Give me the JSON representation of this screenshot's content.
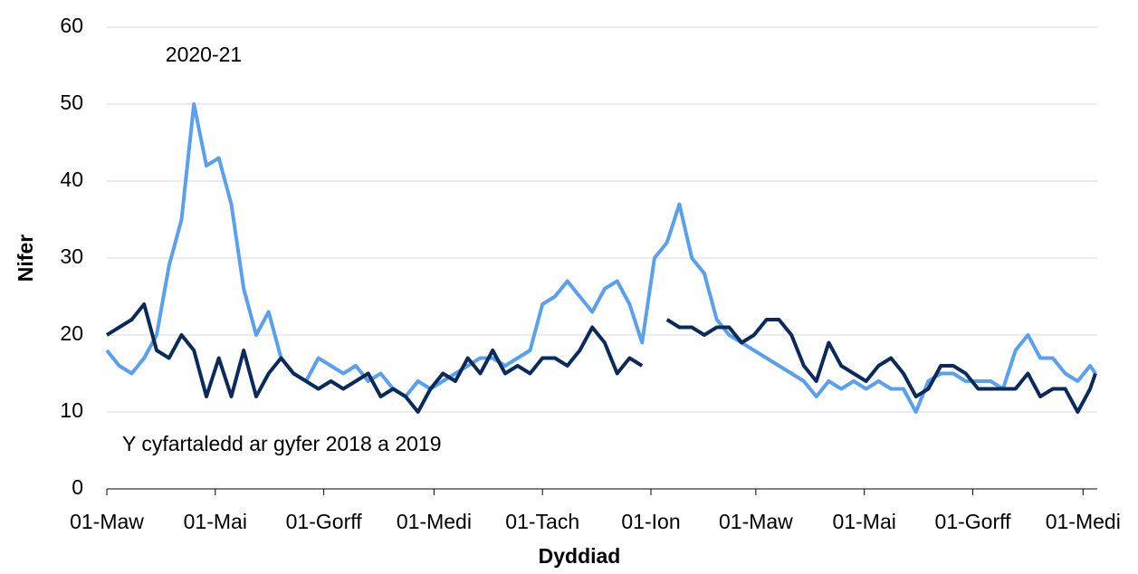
{
  "chart_data": {
    "type": "line",
    "xlabel": "Dyddiad",
    "ylabel": "Nifer",
    "x": [
      0,
      7,
      14,
      21,
      28,
      35,
      42,
      49,
      56,
      63,
      70,
      77,
      84,
      91,
      98,
      105,
      112,
      119,
      126,
      133,
      140,
      147,
      154,
      161,
      168,
      175,
      182,
      189,
      196,
      203,
      210,
      217,
      224,
      231,
      238,
      245,
      252,
      259,
      266,
      273,
      280,
      287,
      294,
      301,
      308,
      315,
      322,
      329,
      336,
      343,
      350,
      357,
      364,
      371,
      378,
      385,
      392,
      399,
      406,
      413,
      420,
      427,
      434,
      441,
      448,
      455,
      462,
      469,
      476,
      483,
      490,
      497,
      504,
      511,
      518,
      525,
      532,
      539,
      546,
      553,
      556
    ],
    "series": [
      {
        "name": "2020-21",
        "color": "#5aa0ee",
        "values": [
          18,
          16,
          15,
          17,
          20,
          29,
          35,
          50,
          42,
          43,
          37,
          26,
          20,
          23,
          17,
          15,
          14,
          17,
          16,
          15,
          16,
          14,
          15,
          13,
          12,
          14,
          13,
          14,
          15,
          16,
          17,
          17,
          16,
          17,
          18,
          24,
          25,
          27,
          25,
          23,
          26,
          27,
          24,
          19,
          30,
          32,
          37,
          30,
          28,
          22,
          20,
          19,
          18,
          17,
          16,
          15,
          14,
          12,
          14,
          13,
          14,
          13,
          14,
          13,
          13,
          10,
          14,
          15,
          15,
          14,
          14,
          14,
          13,
          18,
          20,
          17,
          17,
          15,
          14,
          16,
          15
        ]
      },
      {
        "name": "Y cyfartaledd ar gyfer 2018 a 2019",
        "color": "#0b2a5c",
        "values": [
          20,
          21,
          22,
          24,
          18,
          17,
          20,
          18,
          12,
          17,
          12,
          18,
          12,
          15,
          17,
          15,
          14,
          13,
          14,
          13,
          14,
          15,
          12,
          13,
          12,
          10,
          13,
          15,
          14,
          17,
          15,
          18,
          15,
          16,
          15,
          17,
          17,
          16,
          18,
          21,
          19,
          15,
          17,
          16,
          null,
          22,
          21,
          21,
          20,
          21,
          21,
          19,
          20,
          22,
          22,
          20,
          16,
          14,
          19,
          16,
          15,
          14,
          16,
          17,
          15,
          12,
          13,
          16,
          16,
          15,
          13,
          13,
          13,
          13,
          15,
          12,
          13,
          13,
          10,
          13,
          15
        ]
      }
    ],
    "xlim": [
      0,
      557
    ],
    "xticks": [
      {
        "value": 0,
        "label": "01-Maw"
      },
      {
        "value": 61,
        "label": "01-Mai"
      },
      {
        "value": 122,
        "label": "01-Gorff"
      },
      {
        "value": 184,
        "label": "01-Medi"
      },
      {
        "value": 245,
        "label": "01-Tach"
      },
      {
        "value": 306,
        "label": "01-Ion"
      },
      {
        "value": 365,
        "label": "01-Maw"
      },
      {
        "value": 426,
        "label": "01-Mai"
      },
      {
        "value": 487,
        "label": "01-Gorff"
      },
      {
        "value": 549,
        "label": "01-Medi"
      }
    ],
    "ylim": [
      0,
      60
    ],
    "yticks": [
      0,
      10,
      20,
      30,
      40,
      50,
      60
    ],
    "grid": true
  }
}
